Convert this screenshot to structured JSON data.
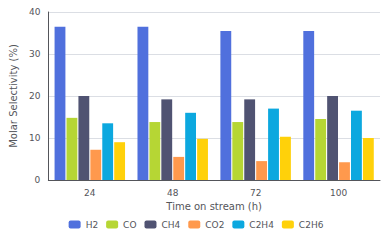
{
  "chart_data": {
    "type": "bar",
    "xlabel": "Time on stream (h)",
    "ylabel": "Molar Selectivity (%)",
    "categories": [
      24,
      48,
      72,
      100
    ],
    "series": [
      {
        "name": "H2",
        "values": [
          36.5,
          36.5,
          35.5,
          35.5
        ]
      },
      {
        "name": "CO",
        "values": [
          14.8,
          13.8,
          13.8,
          14.5
        ]
      },
      {
        "name": "CH4",
        "values": [
          20.0,
          19.2,
          19.2,
          20.0
        ]
      },
      {
        "name": "CO2",
        "values": [
          7.2,
          5.5,
          4.5,
          4.2
        ]
      },
      {
        "name": "C2H4",
        "values": [
          13.5,
          16.0,
          17.0,
          16.5
        ]
      },
      {
        "name": "C2H6",
        "values": [
          9.0,
          9.8,
          10.3,
          10.0
        ]
      }
    ],
    "ylim": [
      0,
      40
    ],
    "yticks": [
      0,
      10,
      20,
      30,
      40
    ],
    "grid": true,
    "legend": "bottom"
  }
}
